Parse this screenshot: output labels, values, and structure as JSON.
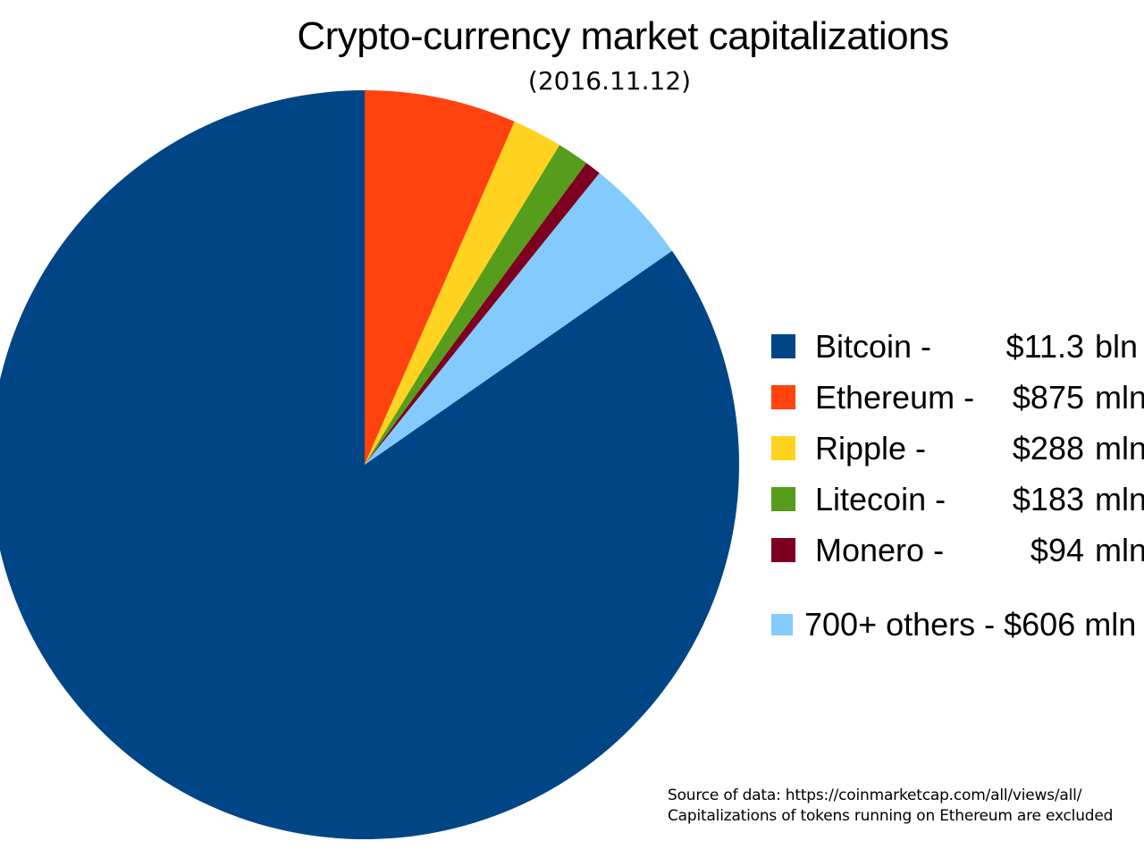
{
  "chart_data": {
    "type": "pie",
    "title": "Crypto-currency market capitalizations",
    "subtitle": "(2016.11.12)",
    "legend_position": "right",
    "series": [
      {
        "name": "Bitcoin",
        "value_mln": 11300,
        "display_value": "$11.3",
        "display_unit": "bln",
        "color": "#004586"
      },
      {
        "name": "Ethereum",
        "value_mln": 875,
        "display_value": "$875",
        "display_unit": "mln",
        "color": "#FF420E"
      },
      {
        "name": "Ripple",
        "value_mln": 288,
        "display_value": "$288",
        "display_unit": "mln",
        "color": "#FFD320"
      },
      {
        "name": "Litecoin",
        "value_mln": 183,
        "display_value": "$183",
        "display_unit": "mln",
        "color": "#579D1C"
      },
      {
        "name": "Monero",
        "value_mln": 94,
        "display_value": "$94",
        "display_unit": "mln",
        "color": "#7E0021"
      },
      {
        "name": "700+ others",
        "value_mln": 606,
        "display_value": "$606",
        "display_unit": "mln",
        "color": "#83CAFF",
        "inline_label": "700+ others - $606 mln"
      }
    ],
    "slice_order": [
      "Ethereum",
      "Ripple",
      "Litecoin",
      "Monero",
      "700+ others",
      "Bitcoin"
    ],
    "start_angle_deg_from_top": 0,
    "direction": "clockwise"
  },
  "source": {
    "line1": "Source of data: https://coinmarketcap.com/all/views/all/",
    "line2": "Capitalizations of tokens running on Ethereum are excluded"
  }
}
